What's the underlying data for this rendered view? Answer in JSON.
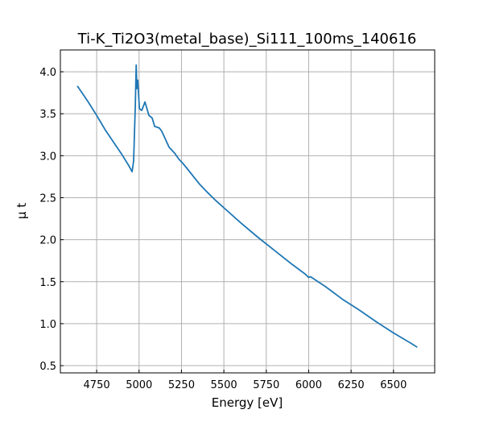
{
  "chart_data": {
    "type": "line",
    "title": "Ti-K_Ti2O3(metal_base)_Si111_100ms_140616",
    "xlabel": "Energy [eV]",
    "ylabel": "μ t",
    "xlim": [
      4536,
      6743
    ],
    "ylim": [
      0.414,
      4.26
    ],
    "xticks": [
      4750,
      5000,
      5250,
      5500,
      5750,
      6000,
      6250,
      6500
    ],
    "yticks": [
      0.5,
      1.0,
      1.5,
      2.0,
      2.5,
      3.0,
      3.5,
      4.0
    ],
    "ytick_labels": [
      "0.5",
      "1.0",
      "1.5",
      "2.0",
      "2.5",
      "3.0",
      "3.5",
      "4.0"
    ],
    "grid": true,
    "color": "#1f77b4",
    "series": [
      {
        "name": "mu t",
        "x": [
          4636,
          4700,
          4750,
          4800,
          4850,
          4900,
          4940,
          4959,
          4968,
          4978,
          4983,
          4987,
          4992,
          5002,
          5016,
          5035,
          5058,
          5077,
          5092,
          5120,
          5134,
          5177,
          5210,
          5234,
          5258,
          5282,
          5357,
          5400,
          5450,
          5500,
          5600,
          5700,
          5800,
          5900,
          5980,
          6000,
          6010,
          6100,
          6200,
          6300,
          6400,
          6500,
          6600,
          6640
        ],
        "y": [
          3.83,
          3.64,
          3.48,
          3.31,
          3.16,
          3.01,
          2.88,
          2.81,
          2.94,
          3.6,
          4.08,
          3.8,
          3.9,
          3.56,
          3.54,
          3.64,
          3.48,
          3.45,
          3.35,
          3.33,
          3.29,
          3.1,
          3.03,
          2.96,
          2.91,
          2.85,
          2.66,
          2.57,
          2.47,
          2.38,
          2.2,
          2.03,
          1.87,
          1.71,
          1.59,
          1.55,
          1.56,
          1.44,
          1.29,
          1.16,
          1.02,
          0.89,
          0.77,
          0.72
        ]
      }
    ]
  }
}
